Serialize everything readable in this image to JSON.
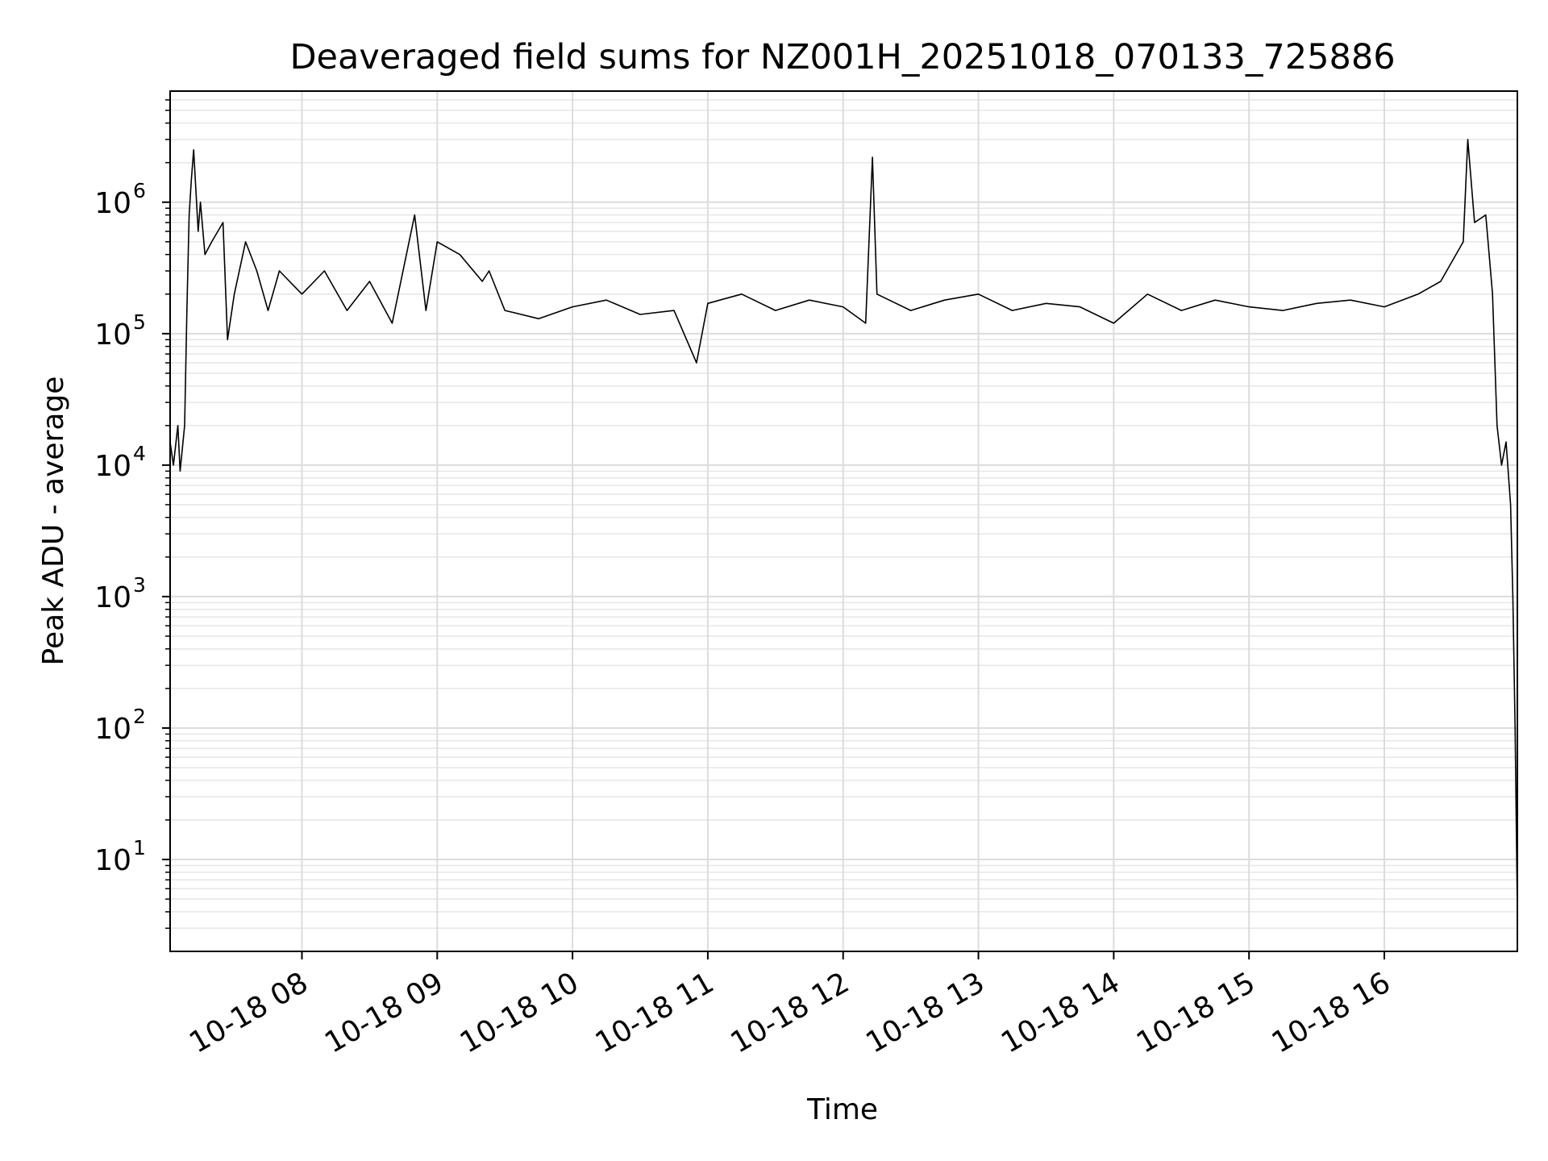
{
  "chart_data": {
    "type": "line",
    "title": "Deaveraged field sums for NZ001H_20251018_070133_725886",
    "xlabel": "Time",
    "ylabel": "Peak ADU - average",
    "yscale": "log",
    "grid": true,
    "grid_minor": true,
    "xlim": [
      "2025-10-18T07:01:33",
      "2025-10-18T16:59:00"
    ],
    "ylim": [
      2,
      7000000
    ],
    "x_ticks": [
      {
        "value": "2025-10-18T08:00:00",
        "label": "10-18 08"
      },
      {
        "value": "2025-10-18T09:00:00",
        "label": "10-18 09"
      },
      {
        "value": "2025-10-18T10:00:00",
        "label": "10-18 10"
      },
      {
        "value": "2025-10-18T11:00:00",
        "label": "10-18 11"
      },
      {
        "value": "2025-10-18T12:00:00",
        "label": "10-18 12"
      },
      {
        "value": "2025-10-18T13:00:00",
        "label": "10-18 13"
      },
      {
        "value": "2025-10-18T14:00:00",
        "label": "10-18 14"
      },
      {
        "value": "2025-10-18T15:00:00",
        "label": "10-18 15"
      },
      {
        "value": "2025-10-18T16:00:00",
        "label": "10-18 16"
      }
    ],
    "y_ticks": [
      {
        "value": 10,
        "base": "10",
        "exp": "1"
      },
      {
        "value": 100,
        "base": "10",
        "exp": "2"
      },
      {
        "value": 1000,
        "base": "10",
        "exp": "3"
      },
      {
        "value": 10000,
        "base": "10",
        "exp": "4"
      },
      {
        "value": 100000,
        "base": "10",
        "exp": "5"
      },
      {
        "value": 1000000,
        "base": "10",
        "exp": "6"
      }
    ],
    "series": [
      {
        "color": "#000000",
        "x": [
          "2025-10-18T07:01:33",
          "2025-10-18T07:03:00",
          "2025-10-18T07:05:00",
          "2025-10-18T07:06:00",
          "2025-10-18T07:08:00",
          "2025-10-18T07:09:00",
          "2025-10-18T07:10:00",
          "2025-10-18T07:11:00",
          "2025-10-18T07:12:00",
          "2025-10-18T07:14:00",
          "2025-10-18T07:15:00",
          "2025-10-18T07:17:00",
          "2025-10-18T07:20:00",
          "2025-10-18T07:25:00",
          "2025-10-18T07:27:00",
          "2025-10-18T07:30:00",
          "2025-10-18T07:35:00",
          "2025-10-18T07:40:00",
          "2025-10-18T07:45:00",
          "2025-10-18T07:50:00",
          "2025-10-18T08:00:00",
          "2025-10-18T08:10:00",
          "2025-10-18T08:20:00",
          "2025-10-18T08:30:00",
          "2025-10-18T08:40:00",
          "2025-10-18T08:50:00",
          "2025-10-18T08:55:00",
          "2025-10-18T09:00:00",
          "2025-10-18T09:10:00",
          "2025-10-18T09:20:00",
          "2025-10-18T09:23:00",
          "2025-10-18T09:30:00",
          "2025-10-18T09:45:00",
          "2025-10-18T10:00:00",
          "2025-10-18T10:15:00",
          "2025-10-18T10:30:00",
          "2025-10-18T10:45:00",
          "2025-10-18T10:55:00",
          "2025-10-18T11:00:00",
          "2025-10-18T11:15:00",
          "2025-10-18T11:30:00",
          "2025-10-18T11:45:00",
          "2025-10-18T12:00:00",
          "2025-10-18T12:10:00",
          "2025-10-18T12:13:00",
          "2025-10-18T12:15:00",
          "2025-10-18T12:30:00",
          "2025-10-18T12:45:00",
          "2025-10-18T13:00:00",
          "2025-10-18T13:15:00",
          "2025-10-18T13:30:00",
          "2025-10-18T13:45:00",
          "2025-10-18T14:00:00",
          "2025-10-18T14:15:00",
          "2025-10-18T14:30:00",
          "2025-10-18T14:45:00",
          "2025-10-18T15:00:00",
          "2025-10-18T15:15:00",
          "2025-10-18T15:30:00",
          "2025-10-18T15:45:00",
          "2025-10-18T16:00:00",
          "2025-10-18T16:15:00",
          "2025-10-18T16:25:00",
          "2025-10-18T16:35:00",
          "2025-10-18T16:37:00",
          "2025-10-18T16:40:00",
          "2025-10-18T16:45:00",
          "2025-10-18T16:48:00",
          "2025-10-18T16:50:00",
          "2025-10-18T16:52:00",
          "2025-10-18T16:54:00",
          "2025-10-18T16:56:00",
          "2025-10-18T16:57:00",
          "2025-10-18T16:58:00",
          "2025-10-18T16:59:00"
        ],
        "y": [
          15000,
          10000,
          20000,
          9000,
          20000,
          150000,
          800000,
          1500000,
          2500000,
          600000,
          1000000,
          400000,
          500000,
          700000,
          90000,
          200000,
          500000,
          300000,
          150000,
          300000,
          200000,
          300000,
          150000,
          250000,
          120000,
          800000,
          150000,
          500000,
          400000,
          250000,
          300000,
          150000,
          130000,
          160000,
          180000,
          140000,
          150000,
          60000,
          170000,
          200000,
          150000,
          180000,
          160000,
          120000,
          2200000,
          200000,
          150000,
          180000,
          200000,
          150000,
          170000,
          160000,
          120000,
          200000,
          150000,
          180000,
          160000,
          150000,
          170000,
          180000,
          160000,
          200000,
          250000,
          500000,
          3000000,
          700000,
          800000,
          200000,
          20000,
          10000,
          15000,
          5000,
          1000,
          100,
          4
        ]
      }
    ]
  }
}
